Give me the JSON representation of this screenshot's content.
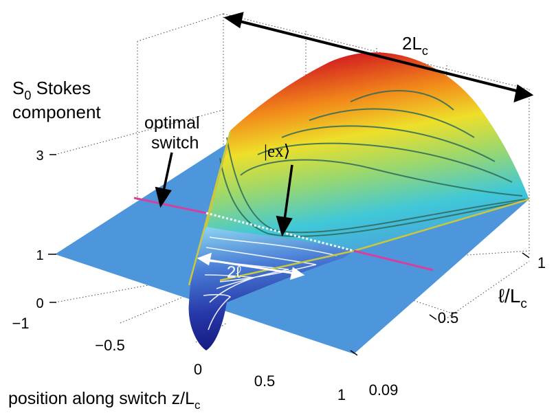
{
  "chart_data": {
    "type": "surface3d",
    "zlabel": {
      "main": "S",
      "sub": "0",
      "rest": " Stokes",
      "line2": "component"
    },
    "xlabel": {
      "main": "position along switch z/L",
      "sub": "c"
    },
    "ylabel": {
      "main": "ℓ/L",
      "sub": "c"
    },
    "x_ticks": [
      "−1",
      "−0.5",
      "0",
      "0.5",
      "1"
    ],
    "y_ticks": [
      "0.09",
      "0.5",
      "1"
    ],
    "z_ticks": [
      "0",
      "1",
      "3"
    ],
    "xlim": [
      -1,
      1
    ],
    "ylim": [
      0.09,
      1
    ],
    "zlim": [
      0,
      3
    ],
    "annotations": {
      "optimal_line1": "optimal",
      "optimal_line2": "switch",
      "ex": "|ex⟩",
      "width": "2ℓ",
      "length_main": "2L",
      "length_sub": "c"
    },
    "colors": {
      "plane": "#4d96dc",
      "magenta_line": "#d4409c",
      "yellow_boundary": "#c8c840",
      "peak": "#b31010",
      "trough": "#1a1a8c"
    }
  }
}
